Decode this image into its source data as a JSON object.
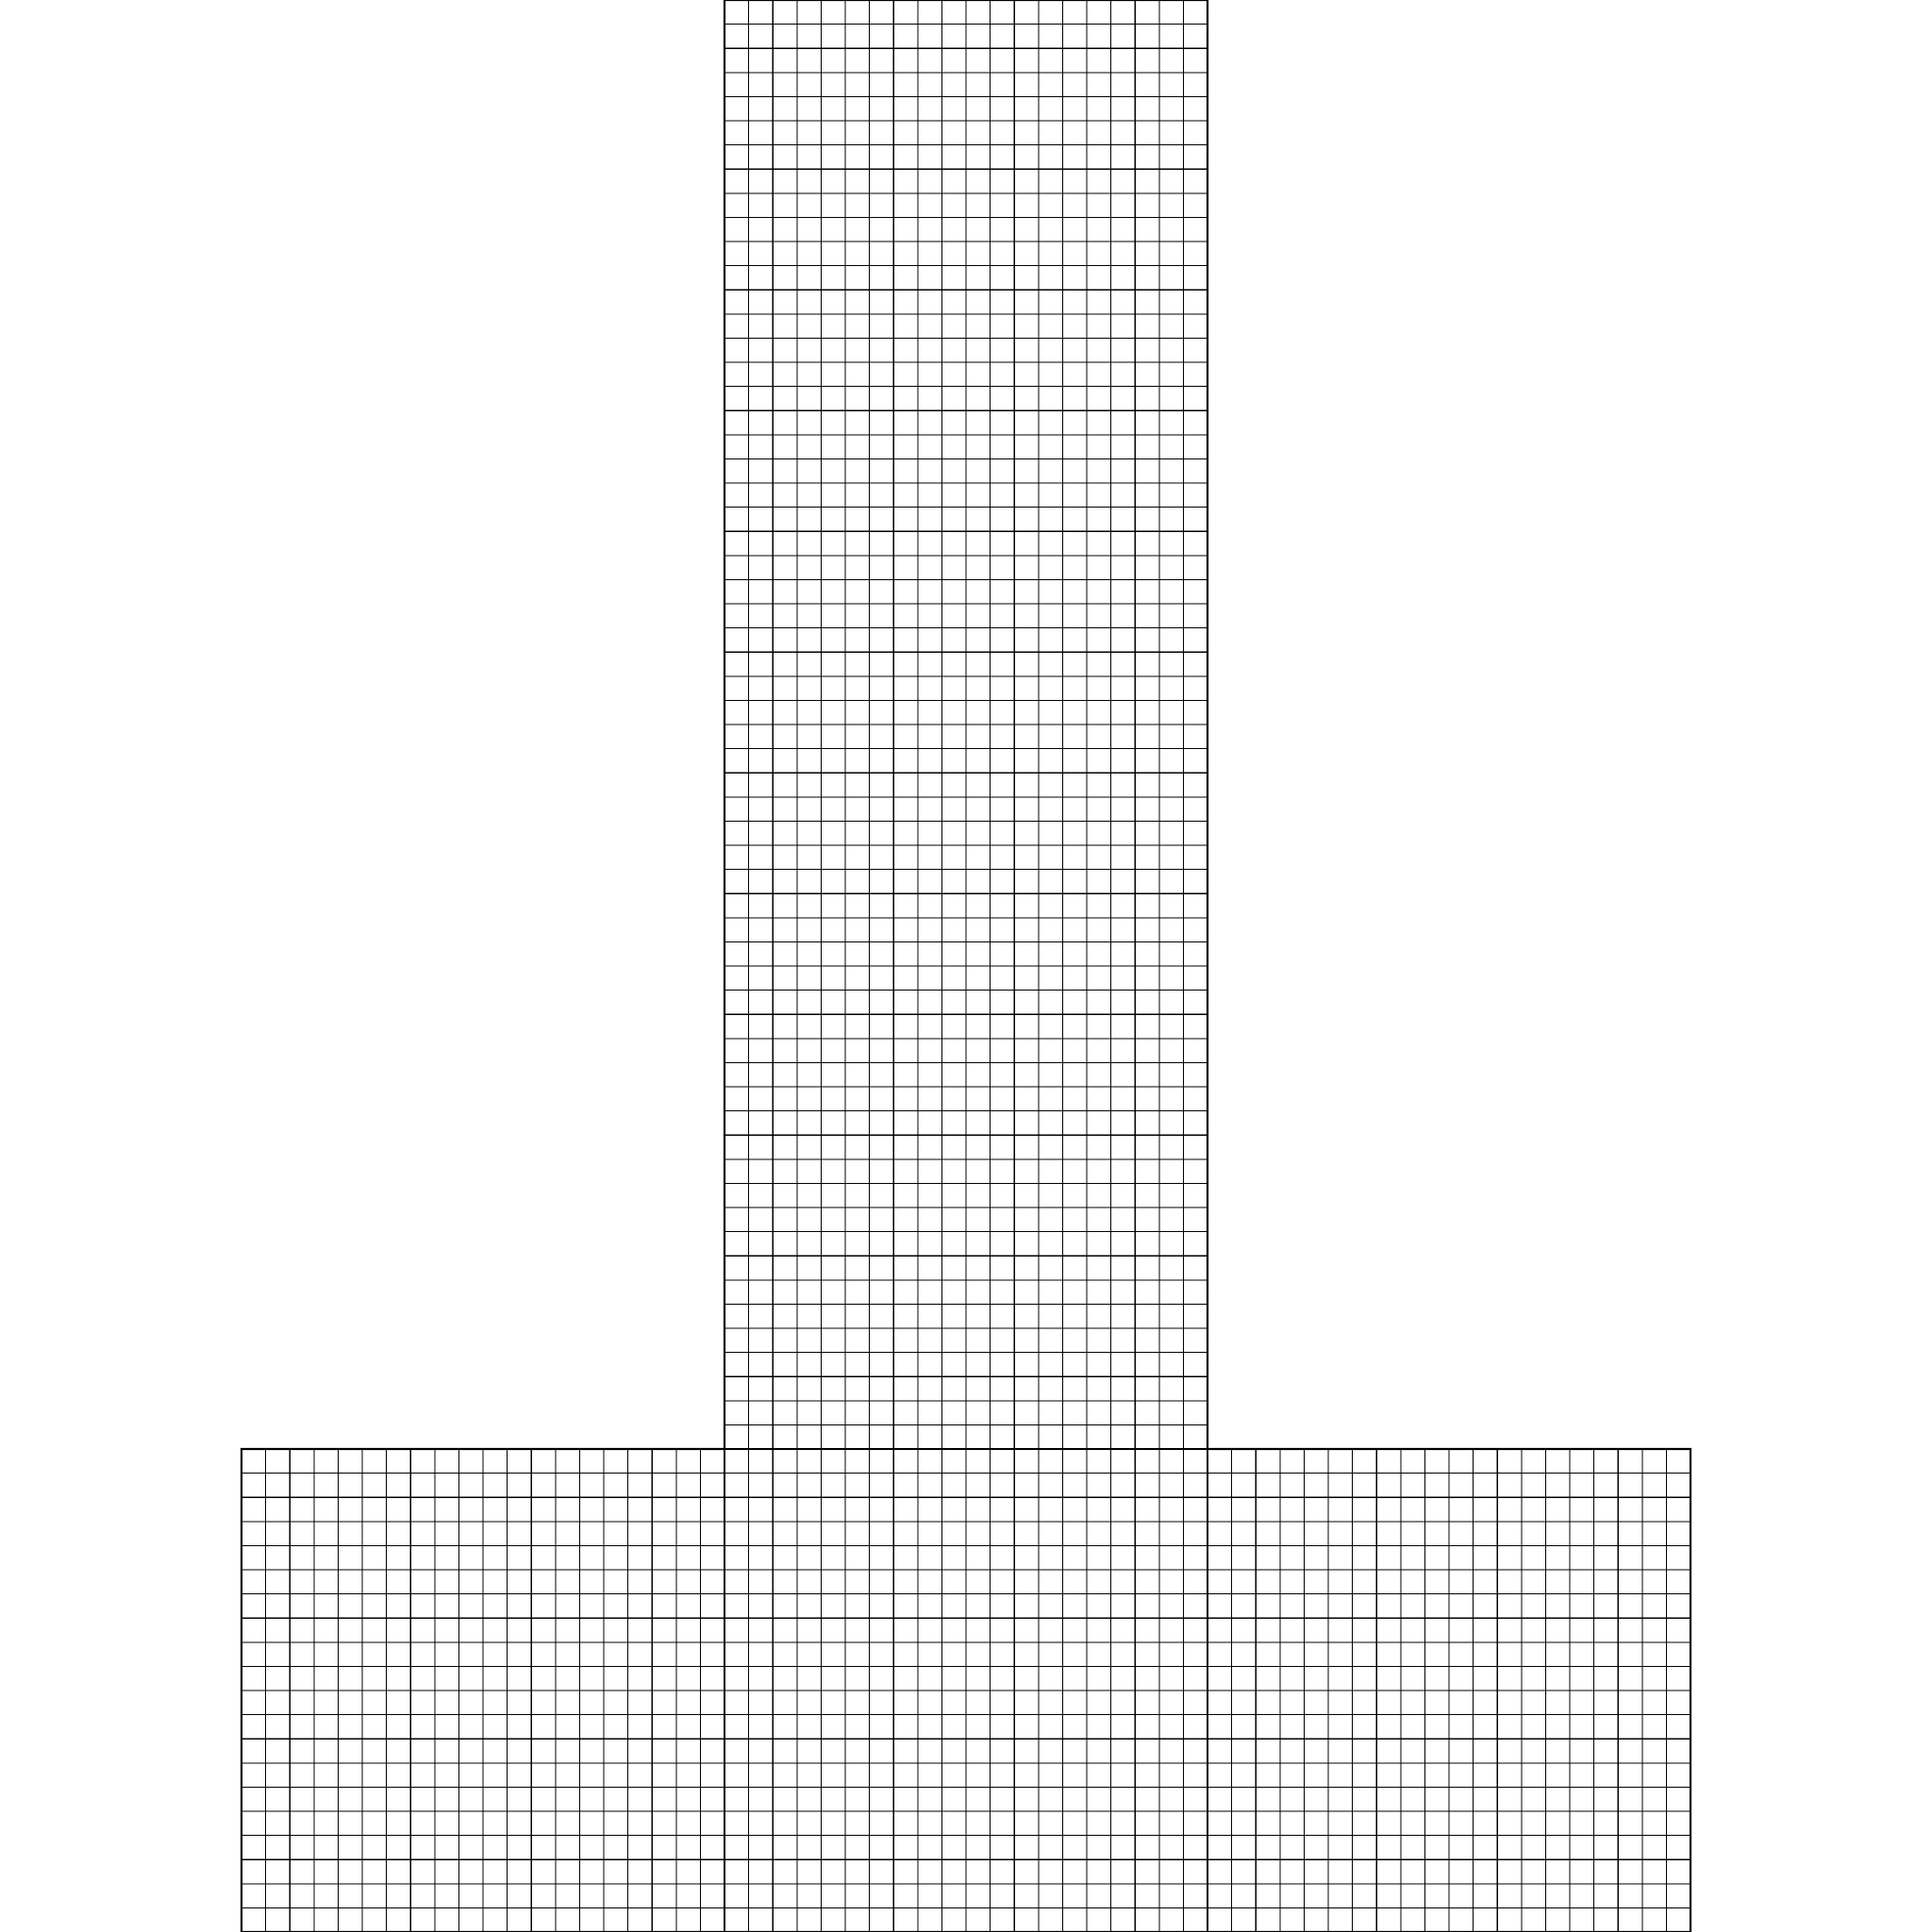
{
  "diagram": {
    "type": "structured-mesh",
    "shape": "inverted-T",
    "line_color": "#000000",
    "background_color": "#ffffff",
    "regions": [
      {
        "name": "stem",
        "columns": 20,
        "rows": 60
      },
      {
        "name": "base-left",
        "columns": 20,
        "rows": 20
      },
      {
        "name": "base-center",
        "columns": 20,
        "rows": 20
      },
      {
        "name": "base-right",
        "columns": 20,
        "rows": 20
      }
    ]
  }
}
